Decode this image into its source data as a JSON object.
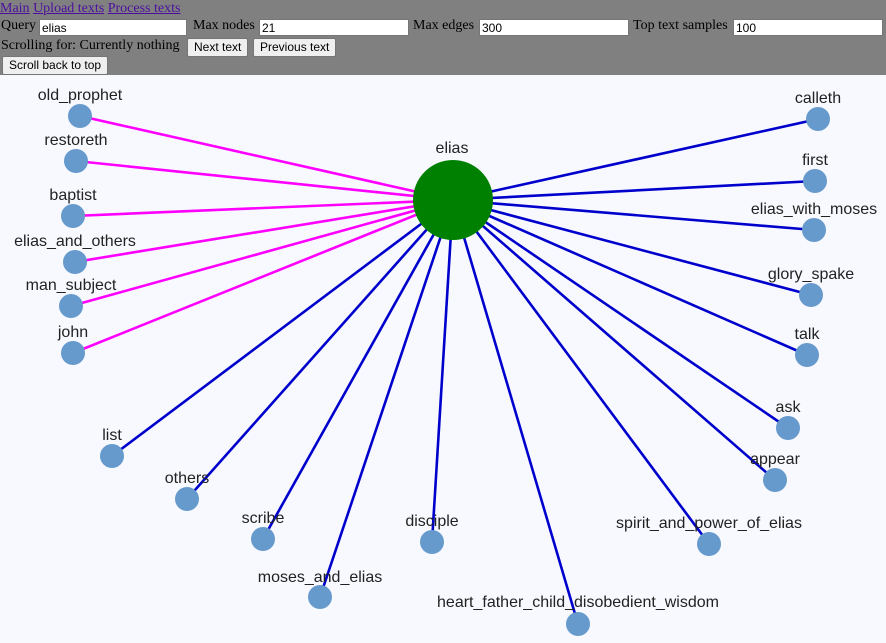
{
  "nav": {
    "links": [
      "Main",
      "Upload texts",
      "Process texts"
    ]
  },
  "controls": {
    "query_label": "Query",
    "query_value": "elias",
    "max_nodes_label": "Max nodes",
    "max_nodes_value": "21",
    "max_edges_label": "Max edges",
    "max_edges_value": "300",
    "top_samples_label": "Top text samples",
    "top_samples_value": "100",
    "scrolling_text": "Scrolling for: Currently nothing",
    "next_label": "Next text",
    "prev_label": "Previous text",
    "scroll_top_label": "Scroll back to top"
  },
  "graph": {
    "center": {
      "label": "elias",
      "color": "#008000"
    },
    "node_color": "#6699cc",
    "edge_colors": {
      "magenta": "#ff00ff",
      "blue": "#0000cd"
    },
    "nodes": [
      {
        "label": "old_prophet",
        "edge": "magenta"
      },
      {
        "label": "restoreth",
        "edge": "magenta"
      },
      {
        "label": "baptist",
        "edge": "magenta"
      },
      {
        "label": "elias_and_others",
        "edge": "magenta"
      },
      {
        "label": "man_subject",
        "edge": "magenta"
      },
      {
        "label": "john",
        "edge": "magenta"
      },
      {
        "label": "list",
        "edge": "blue"
      },
      {
        "label": "others",
        "edge": "blue"
      },
      {
        "label": "scribe",
        "edge": "blue"
      },
      {
        "label": "moses_and_elias",
        "edge": "blue"
      },
      {
        "label": "disciple",
        "edge": "blue"
      },
      {
        "label": "heart_father_child_disobedient_wisdom",
        "edge": "blue"
      },
      {
        "label": "spirit_and_power_of_elias",
        "edge": "blue"
      },
      {
        "label": "appear",
        "edge": "blue"
      },
      {
        "label": "ask",
        "edge": "blue"
      },
      {
        "label": "talk",
        "edge": "blue"
      },
      {
        "label": "glory_spake",
        "edge": "blue"
      },
      {
        "label": "elias_with_moses",
        "edge": "blue"
      },
      {
        "label": "first",
        "edge": "blue"
      },
      {
        "label": "calleth",
        "edge": "blue"
      }
    ]
  }
}
